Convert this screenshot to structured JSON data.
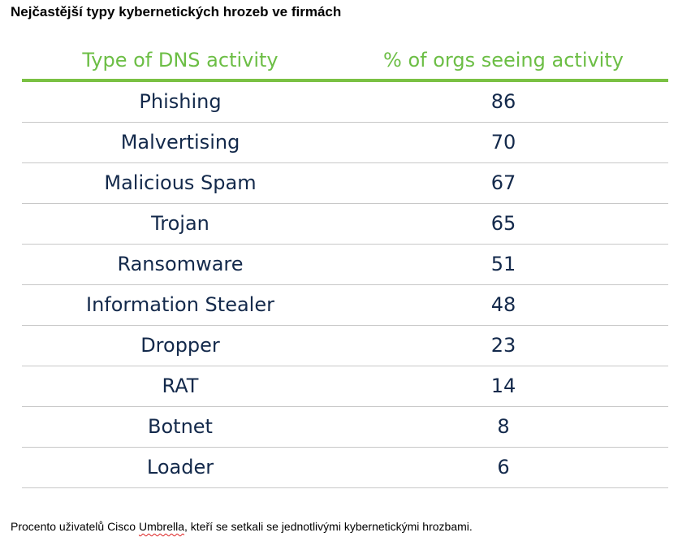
{
  "title": "Nejčastější typy kybernetických hrozeb ve firmách",
  "table": {
    "headers": [
      "Type of DNS activity",
      "% of orgs seeing activity"
    ],
    "rows": [
      {
        "type": "Phishing",
        "percent": "86"
      },
      {
        "type": "Malvertising",
        "percent": "70"
      },
      {
        "type": "Malicious Spam",
        "percent": "67"
      },
      {
        "type": "Trojan",
        "percent": "65"
      },
      {
        "type": "Ransomware",
        "percent": "51"
      },
      {
        "type": "Information Stealer",
        "percent": "48"
      },
      {
        "type": "Dropper",
        "percent": "23"
      },
      {
        "type": "RAT",
        "percent": "14"
      },
      {
        "type": "Botnet",
        "percent": "8"
      },
      {
        "type": "Loader",
        "percent": "6"
      }
    ]
  },
  "footnote": {
    "before": "Procento uživatelů Cisco ",
    "misspelled": "Umbrella",
    "after": ", kteří se setkali se jednotlivými kybernetickými hrozbami."
  },
  "colors": {
    "header_text": "#6cbe45",
    "header_rule": "#7ac143",
    "body_text": "#13294b",
    "row_rule": "#c8c8c8"
  }
}
